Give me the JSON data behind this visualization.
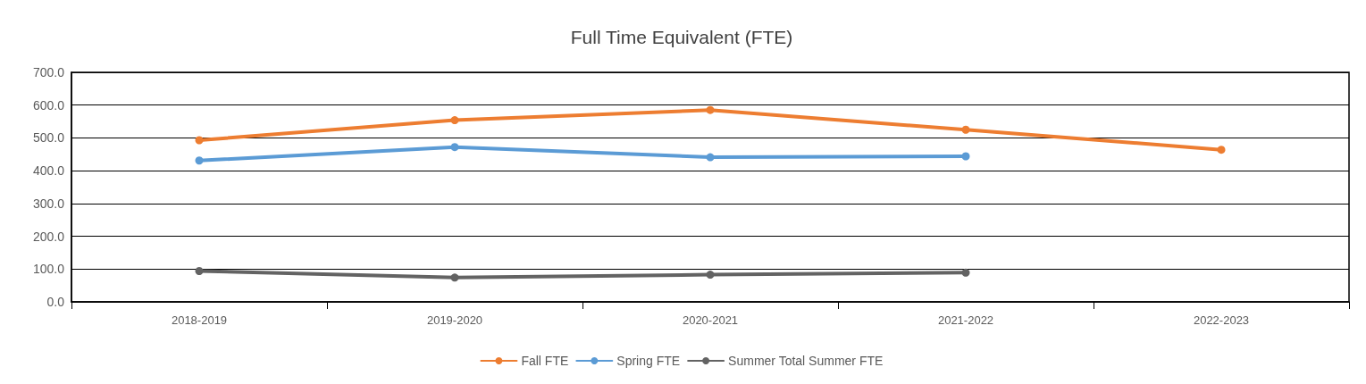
{
  "chart_data": {
    "type": "line",
    "title": "Full Time Equivalent (FTE)",
    "categories": [
      "2018-2019",
      "2019-2020",
      "2020-2021",
      "2021-2022",
      "2022-2023"
    ],
    "series": [
      {
        "name": "Fall FTE",
        "color": "#ed7d31",
        "values": [
          493,
          554,
          585,
          525,
          464
        ]
      },
      {
        "name": "Spring FTE",
        "color": "#5b9bd5",
        "values": [
          431,
          472,
          441,
          444,
          null
        ]
      },
      {
        "name": "Summer Total Summer FTE",
        "color": "#636363",
        "values": [
          94,
          74,
          83,
          89,
          null
        ]
      }
    ],
    "ylim": [
      0,
      700
    ],
    "yticks": [
      {
        "value": 0,
        "label": "0.0"
      },
      {
        "value": 100,
        "label": "100.0"
      },
      {
        "value": 200,
        "label": "200.0"
      },
      {
        "value": 300,
        "label": "300.0"
      },
      {
        "value": 400,
        "label": "400.0"
      },
      {
        "value": 500,
        "label": "500.0"
      },
      {
        "value": 600,
        "label": "600.0"
      },
      {
        "value": 700,
        "label": "700.0"
      }
    ],
    "grid": "y",
    "legend": "bottom",
    "marker": "circle",
    "line_style": "solid"
  }
}
